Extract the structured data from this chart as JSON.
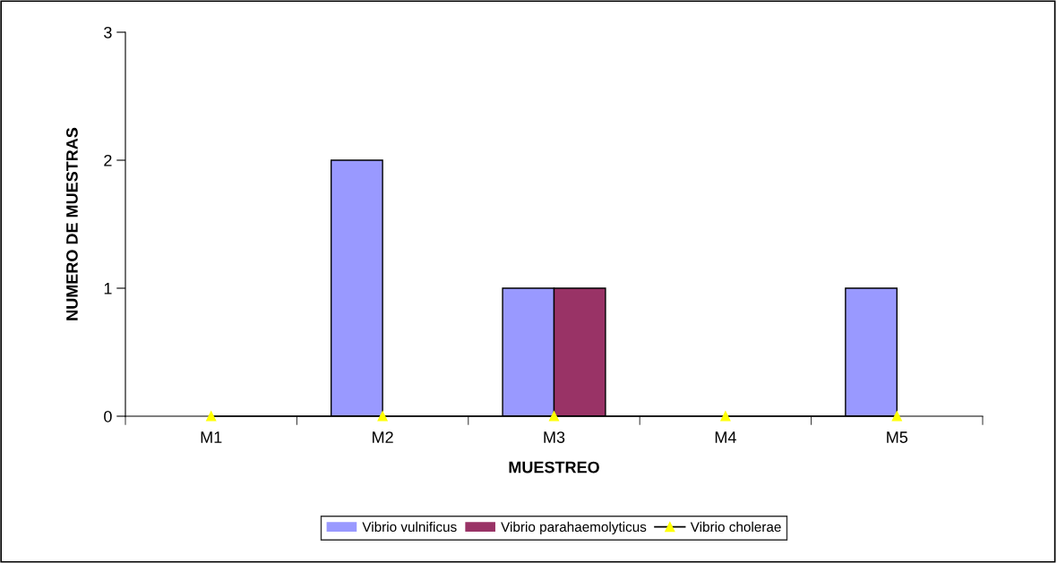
{
  "chart_data": {
    "type": "bar",
    "xlabel": "MUESTREO",
    "ylabel": "NUMERO DE MUESTRAS",
    "categories": [
      "M1",
      "M2",
      "M3",
      "M4",
      "M5"
    ],
    "series": [
      {
        "name": "Vibrio vulnificus",
        "color": "#9999ff",
        "values": [
          0,
          2,
          1,
          0,
          1
        ]
      },
      {
        "name": "Vibrio parahaemolyticus",
        "color": "#993366",
        "values": [
          0,
          0,
          1,
          0,
          0
        ]
      },
      {
        "name": "Vibrio cholerae",
        "color": "#ffff00",
        "type": "line",
        "marker": "triangle",
        "values": [
          0,
          0,
          0,
          0,
          0
        ]
      }
    ],
    "ylim": [
      0,
      3
    ],
    "yticks": [
      0,
      1,
      2,
      3
    ],
    "grid": false,
    "legend": "bottom"
  }
}
